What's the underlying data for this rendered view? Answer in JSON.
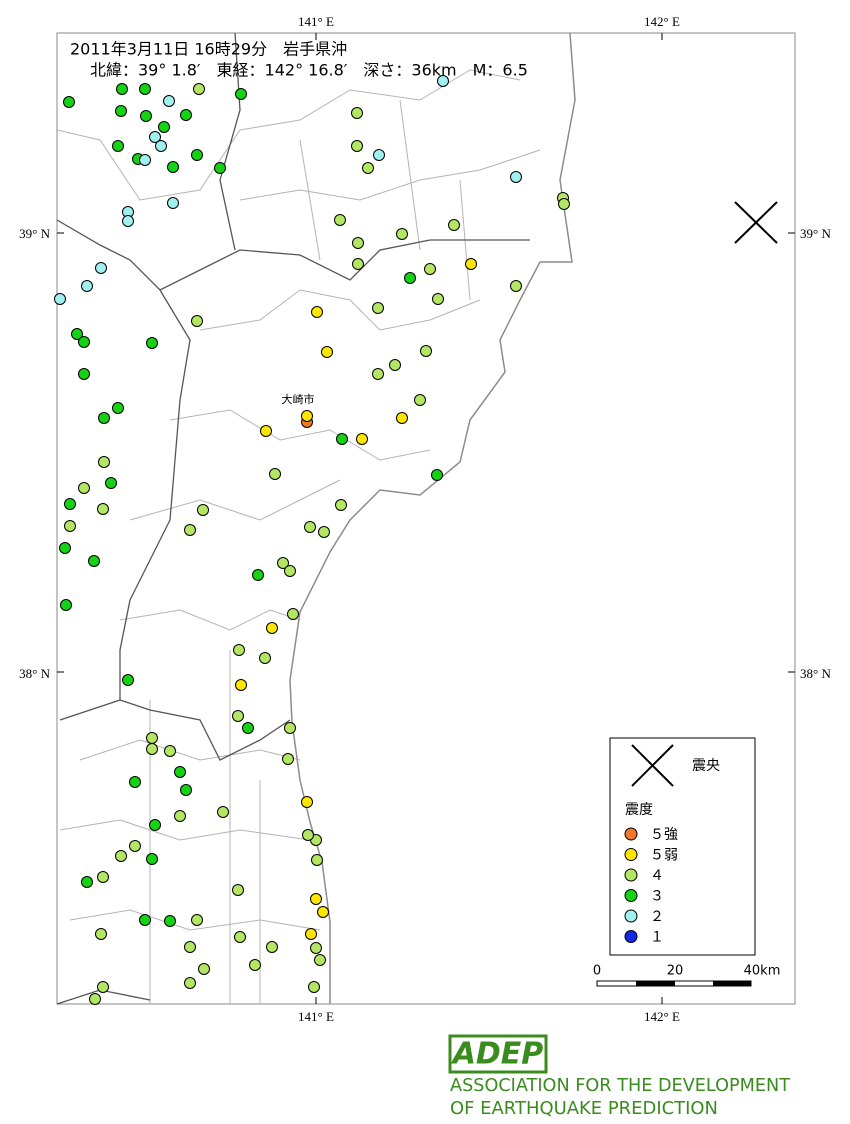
{
  "header": {
    "line1": "2011年3月11日 16時29分　岩手県沖",
    "line2": "北緯：39° 1.8′　東経：142° 16.8′　深さ：36km　M：6.5"
  },
  "axes": {
    "top": [
      "141° E",
      "142° E"
    ],
    "bottom": [
      "141° E",
      "142° E"
    ],
    "left": [
      "39° N",
      "38° N"
    ],
    "right": [
      "39° N",
      "38° N"
    ]
  },
  "places": [
    "大崎市"
  ],
  "legend": {
    "epicenter": "震央",
    "intensity_title": "震度",
    "items": [
      {
        "label": "５強",
        "color": "#f07828"
      },
      {
        "label": "５弱",
        "color": "#ffe600"
      },
      {
        "label": "４",
        "color": "#b4e664"
      },
      {
        "label": "３",
        "color": "#14d214"
      },
      {
        "label": "２",
        "color": "#a0f0f0"
      },
      {
        "label": "１",
        "color": "#1428e6"
      }
    ]
  },
  "scale": {
    "labels": [
      "0",
      "20",
      "40km"
    ]
  },
  "logo": {
    "mark": "ADEP",
    "line1": "ASSOCIATION FOR THE DEVELOPMENT",
    "line2": "OF EARTHQUAKE PREDICTION"
  }
}
